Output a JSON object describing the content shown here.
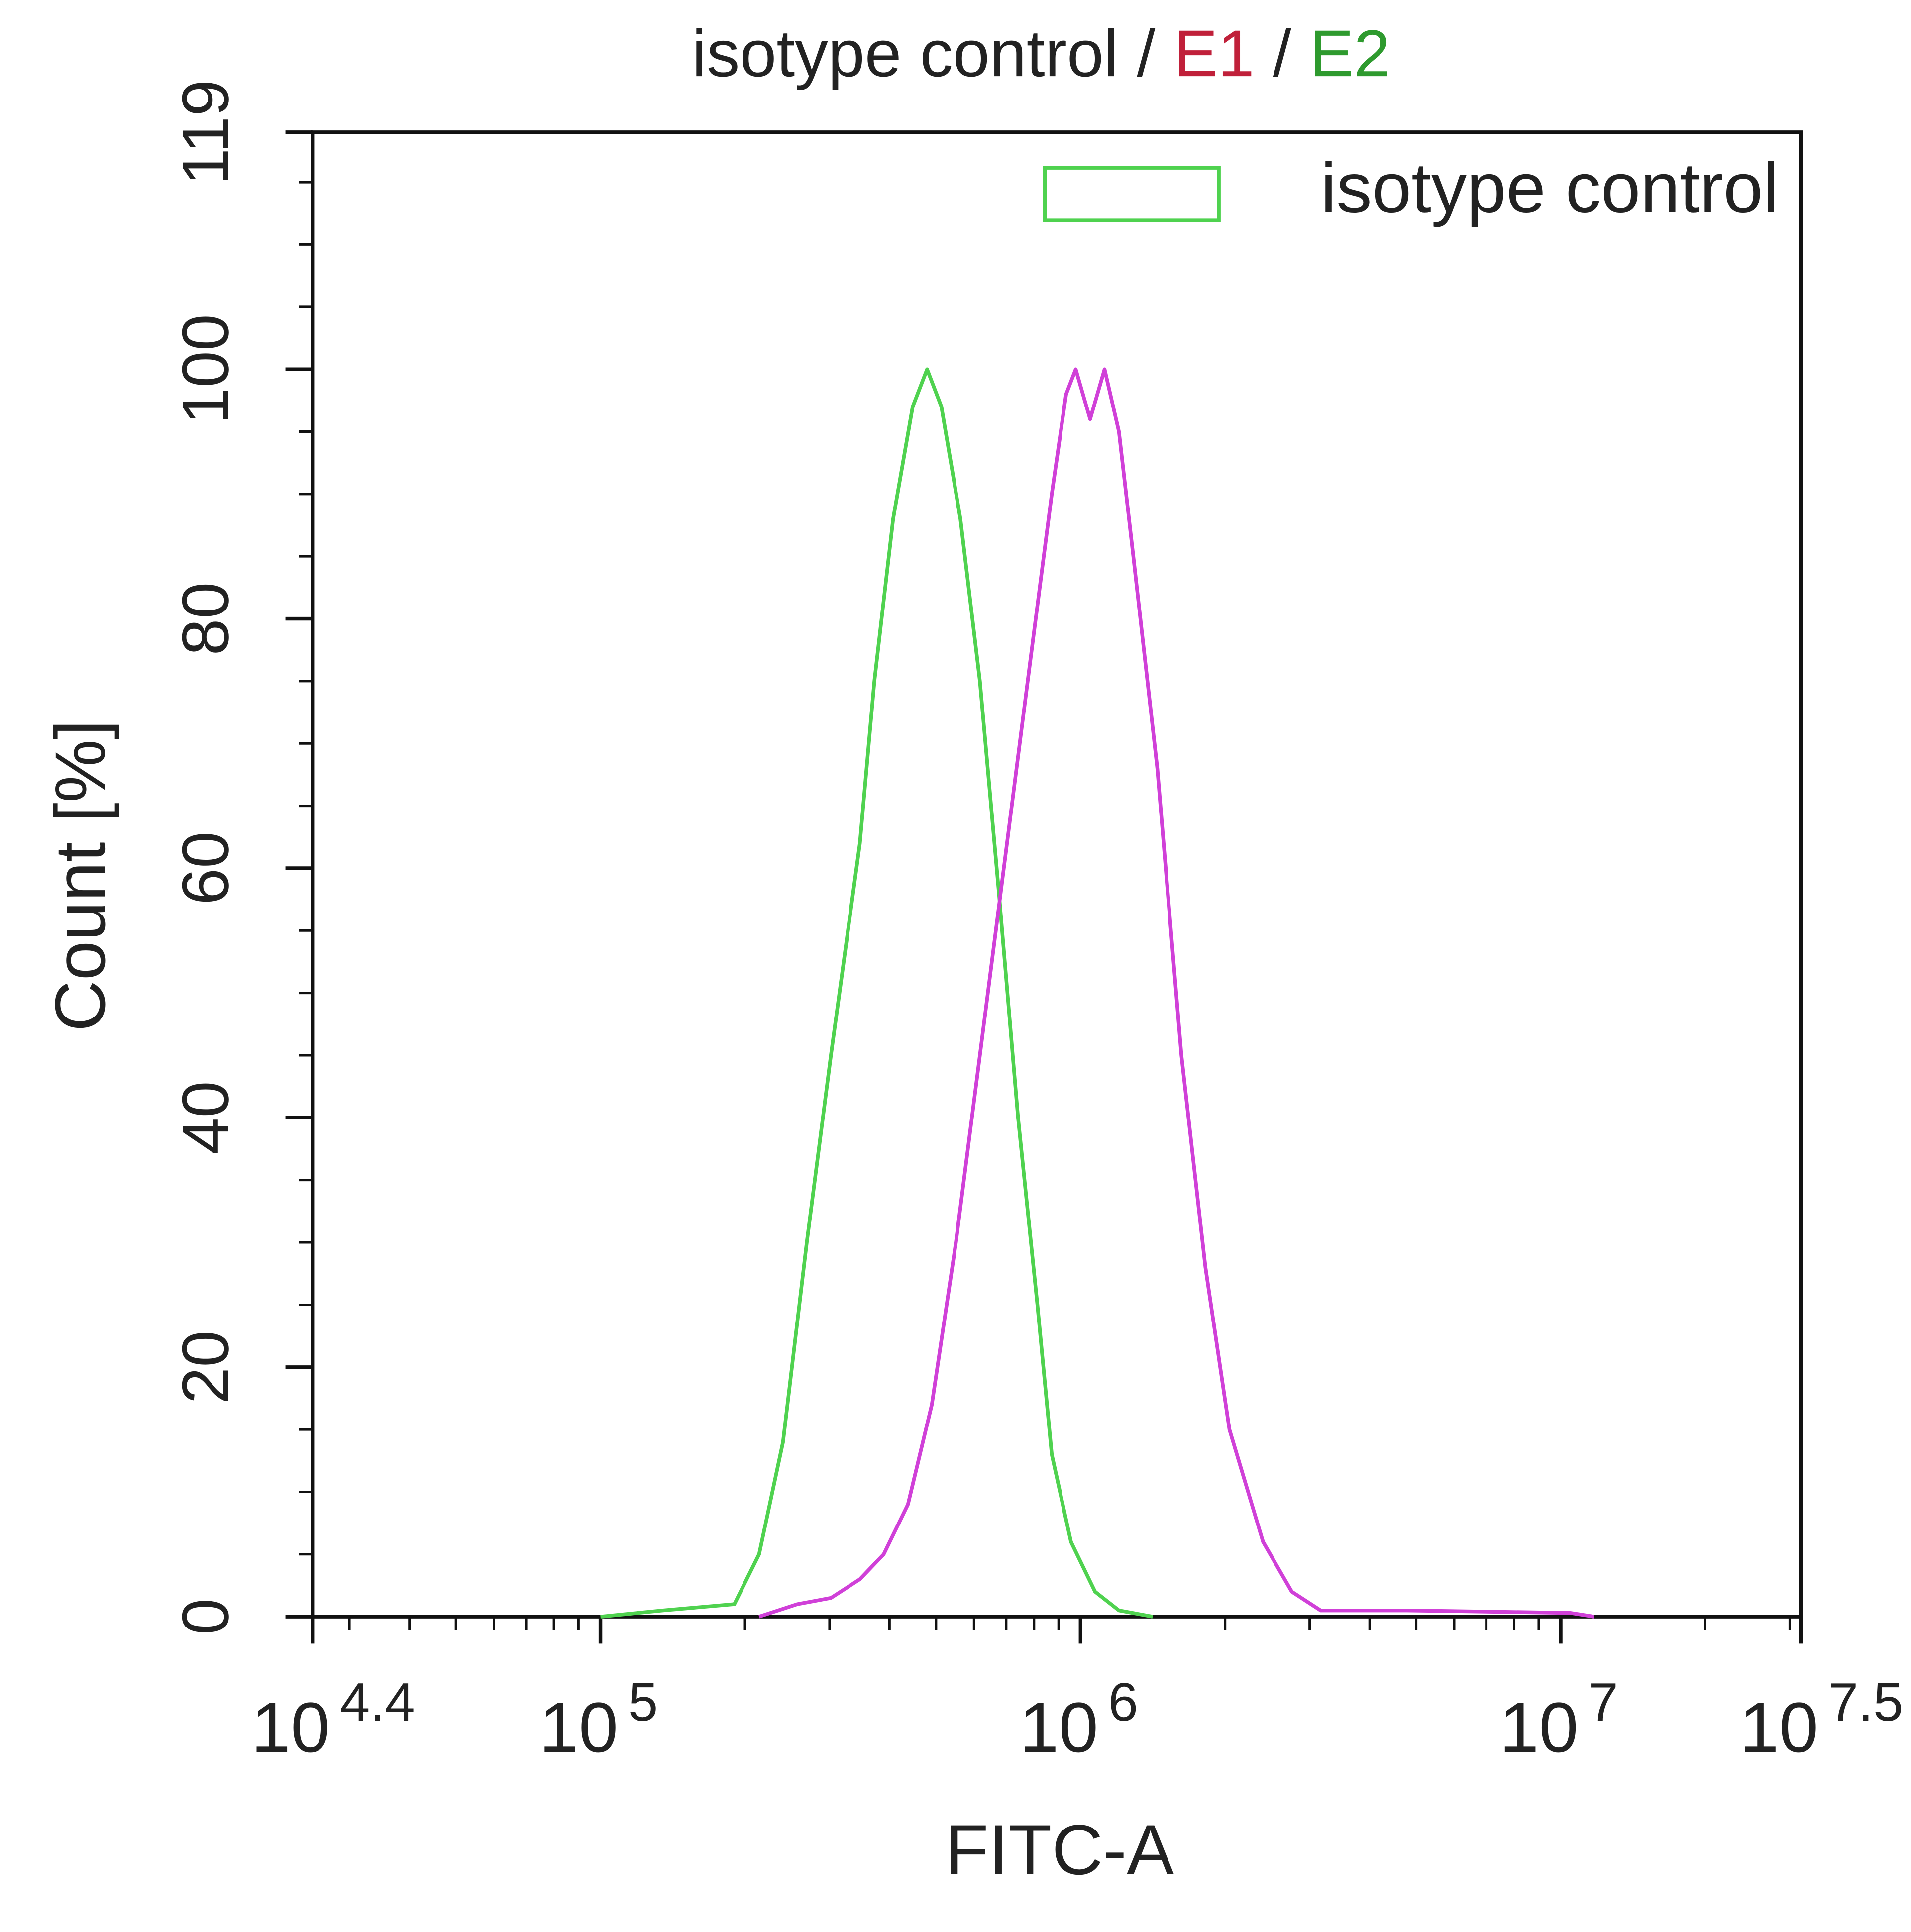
{
  "chart_data": {
    "type": "line",
    "title_parts": [
      {
        "text": "isotype control",
        "color": "#222222"
      },
      {
        "text": "/",
        "color": "#222222"
      },
      {
        "text": "E1",
        "color": "#c0203a"
      },
      {
        "text": "/",
        "color": "#222222"
      },
      {
        "text": "E2",
        "color": "#2e9a2e"
      }
    ],
    "x_label": "FITC-A",
    "y_label": "Count  [%]",
    "x_scale": "log",
    "xlim": [
      25118.86,
      31622776.6
    ],
    "xticks": [
      {
        "value": 25118.86,
        "label": [
          "10",
          "4.4"
        ]
      },
      {
        "value": 100000,
        "label": [
          "10",
          "5"
        ]
      },
      {
        "value": 1000000,
        "label": [
          "10",
          "6"
        ]
      },
      {
        "value": 10000000,
        "label": [
          "10",
          "7"
        ]
      },
      {
        "value": 31622776.6,
        "label": [
          "10",
          "7.5"
        ]
      }
    ],
    "ylim": [
      0,
      119
    ],
    "yticks": [
      0,
      20,
      40,
      60,
      80,
      100,
      119
    ],
    "legend": "top-right",
    "series": [
      {
        "name": "isotype control",
        "color": "#4fd24f",
        "x": [
          100000,
          135000,
          190000,
          214000,
          240000,
          269000,
          302000,
          347000,
          372000,
          407000,
          447000,
          479000,
          513000,
          562000,
          617000,
          676000,
          741000,
          813000,
          871000,
          955000,
          1072000,
          1202000,
          1413000
        ],
        "values": [
          0,
          0.5,
          1,
          5,
          14,
          30,
          45,
          62,
          75,
          88,
          97,
          100,
          97,
          88,
          75,
          58,
          40,
          25,
          13,
          6,
          2,
          0.5,
          0
        ]
      },
      {
        "color": "#d040d8",
        "x": [
          214000,
          257000,
          302000,
          347000,
          389000,
          437000,
          490000,
          550000,
          617000,
          692000,
          776000,
          871000,
          933000,
          977000,
          1047000,
          1122000,
          1202000,
          1288000,
          1445000,
          1622000,
          1820000,
          2042000,
          2399000,
          2754000,
          3162000,
          4786000,
          10471000,
          11749000
        ],
        "values": [
          0,
          1,
          1.5,
          3,
          5,
          9,
          17,
          30,
          45,
          60,
          75,
          90,
          98,
          100,
          96,
          100,
          95,
          85,
          68,
          45,
          28,
          15,
          6,
          2,
          0.5,
          0.5,
          0.3,
          0
        ]
      }
    ]
  }
}
